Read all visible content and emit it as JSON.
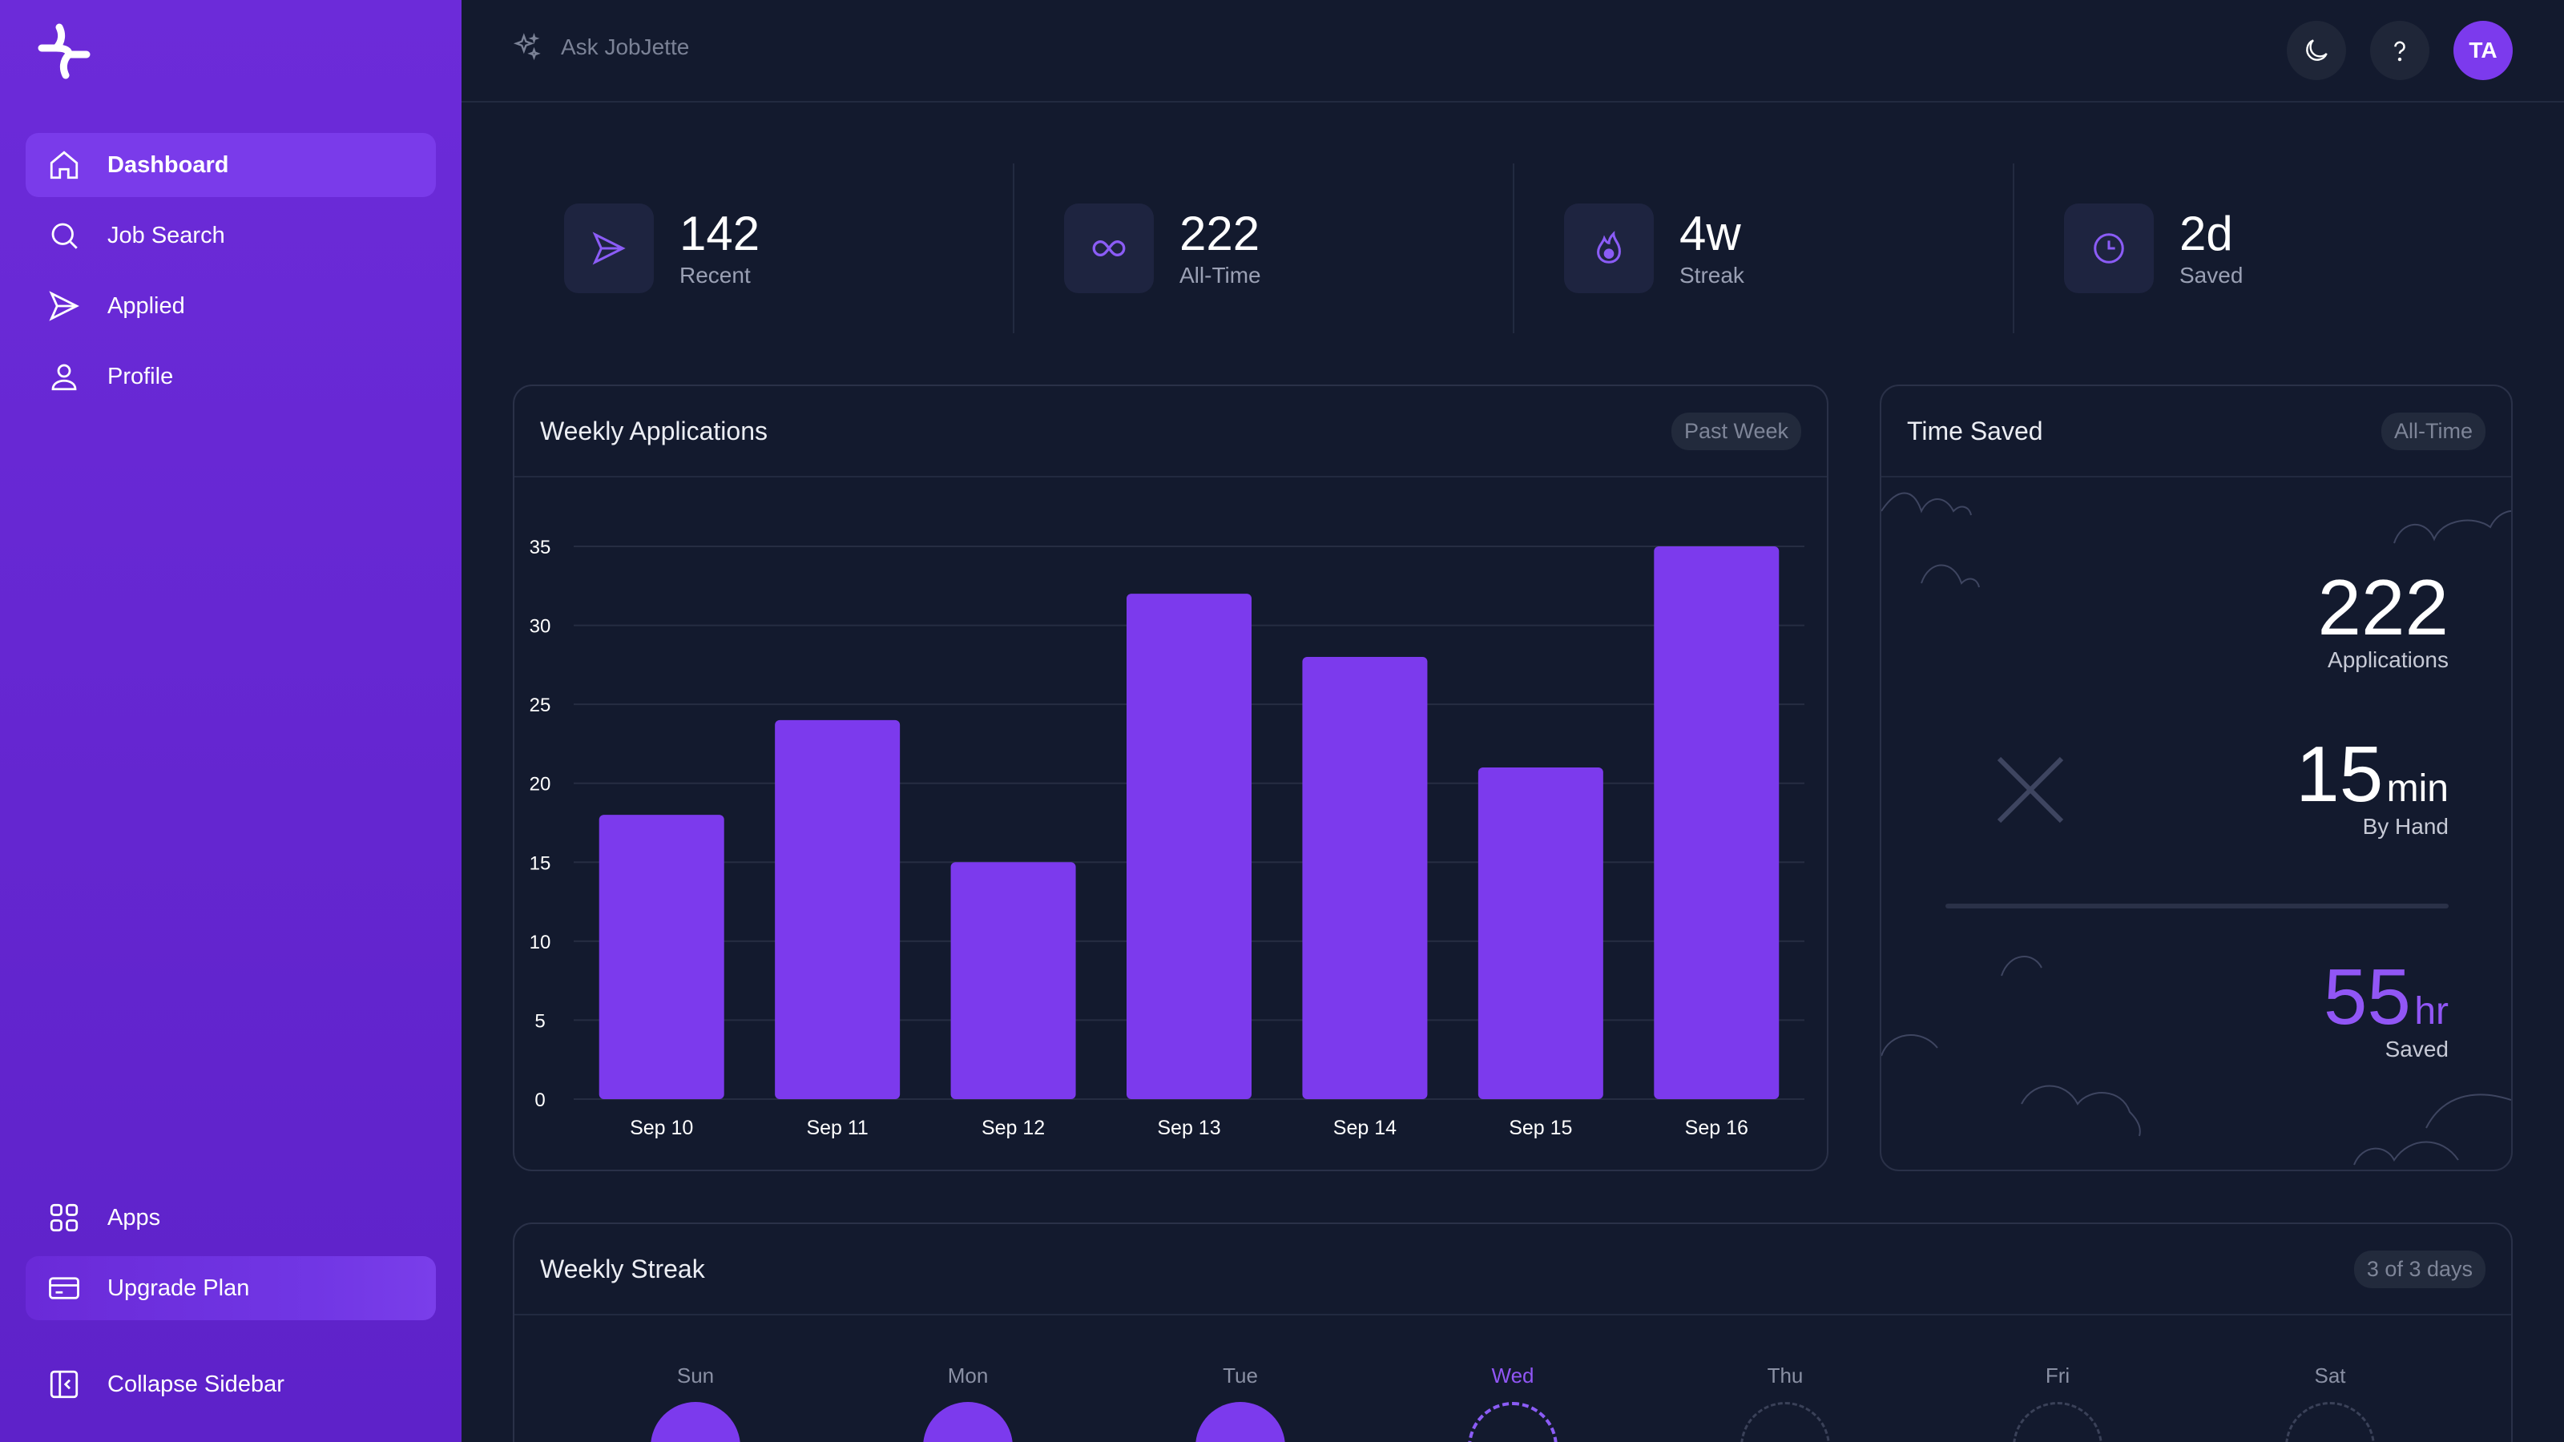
{
  "sidebar": {
    "nav": [
      {
        "label": "Dashboard",
        "icon": "home-icon",
        "active": true
      },
      {
        "label": "Job Search",
        "icon": "search-icon"
      },
      {
        "label": "Applied",
        "icon": "send-icon"
      },
      {
        "label": "Profile",
        "icon": "user-icon"
      }
    ],
    "bottom": [
      {
        "label": "Apps",
        "icon": "grid-icon"
      },
      {
        "label": "Upgrade Plan",
        "icon": "credit-card-icon"
      }
    ],
    "collapse_label": "Collapse Sidebar"
  },
  "topbar": {
    "ask_label": "Ask JobJette",
    "avatar_initials": "TA"
  },
  "stats": [
    {
      "value": "142",
      "label": "Recent",
      "icon": "send-icon"
    },
    {
      "value": "222",
      "label": "All-Time",
      "icon": "infinity-icon"
    },
    {
      "value": "4w",
      "label": "Streak",
      "icon": "flame-icon"
    },
    {
      "value": "2d",
      "label": "Saved",
      "icon": "clock-icon"
    }
  ],
  "weekly_card": {
    "title": "Weekly Applications",
    "badge": "Past Week"
  },
  "chart_data": {
    "type": "bar",
    "categories": [
      "Sep 10",
      "Sep 11",
      "Sep 12",
      "Sep 13",
      "Sep 14",
      "Sep 15",
      "Sep 16"
    ],
    "values": [
      18,
      24,
      15,
      32,
      28,
      21,
      35
    ],
    "yticks": [
      0,
      5,
      10,
      15,
      20,
      25,
      30,
      35
    ],
    "ylim": [
      0,
      35
    ],
    "grid": true,
    "bar_color": "#7c3aed"
  },
  "time_saved": {
    "title": "Time Saved",
    "badge": "All-Time",
    "applications_value": "222",
    "applications_label": "Applications",
    "by_hand_value": "15",
    "by_hand_unit": "min",
    "by_hand_label": "By Hand",
    "saved_value": "55",
    "saved_unit": "hr",
    "saved_label": "Saved"
  },
  "streak": {
    "title": "Weekly Streak",
    "badge": "3 of 3 days",
    "days": [
      {
        "label": "Sun",
        "state": "done"
      },
      {
        "label": "Mon",
        "state": "done"
      },
      {
        "label": "Tue",
        "state": "done"
      },
      {
        "label": "Wed",
        "state": "today"
      },
      {
        "label": "Thu",
        "state": "future"
      },
      {
        "label": "Fri",
        "state": "future"
      },
      {
        "label": "Sat",
        "state": "future"
      }
    ]
  },
  "colors": {
    "sidebar": "#6c2bd9",
    "accent": "#7c3aed",
    "background": "#131a2e"
  }
}
